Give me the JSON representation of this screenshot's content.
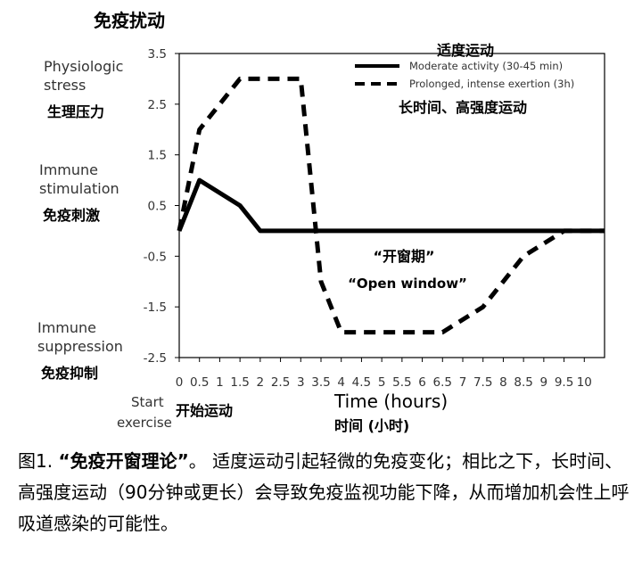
{
  "chart_data": {
    "type": "line",
    "title": "免疫扰动",
    "xlabel": "Time (hours)",
    "xlabel_cn": "时间 (小时)",
    "x_start_label": "Start exercise",
    "x_start_label_cn": "开始运动",
    "x_ticks": [
      "0",
      "0.5",
      "1",
      "1.5",
      "2",
      "2.5",
      "3",
      "3.5",
      "4",
      "4.5",
      "5",
      "5.5",
      "6",
      "6.5",
      "7",
      "7.5",
      "8",
      "8.5",
      "9",
      "9.5",
      "10"
    ],
    "y_ticks": [
      "3.5",
      "2.5",
      "1.5",
      "0.5",
      "-0.5",
      "-1.5",
      "-2.5"
    ],
    "ylim": [
      -2.5,
      3.5
    ],
    "xlim": [
      0,
      10.5
    ],
    "y_annotations": [
      {
        "en": "Physiologic stress",
        "cn": "生理压力",
        "y": 3.0
      },
      {
        "en": "Immune stimulation",
        "cn": "免疫刺激",
        "y": 0.8
      },
      {
        "en": "Immune suppression",
        "cn": "免疫抑制",
        "y": -2.0
      }
    ],
    "legend_position": "top-right",
    "series": [
      {
        "name": "Moderate activity (30-45 min)",
        "name_cn": "适度运动",
        "style": "solid",
        "x": [
          0,
          0.5,
          1.5,
          2,
          10.5
        ],
        "y": [
          0,
          1,
          0.5,
          0,
          0
        ]
      },
      {
        "name": "Prolonged, intense exertion (3h)",
        "name_cn": "长时间、高强度运动",
        "style": "dashed",
        "x": [
          0,
          0.5,
          1.5,
          3,
          3.5,
          4,
          6.5,
          7.5,
          8.5,
          9.5,
          10.5
        ],
        "y": [
          0,
          2,
          3,
          3,
          -1,
          -2,
          -2,
          -1.5,
          -0.5,
          0,
          0
        ]
      }
    ],
    "annotations": [
      {
        "cn": "“开窗期”",
        "en": "“Open window”"
      }
    ],
    "colors": {
      "line": "#000000",
      "axis": "#000000",
      "text": "#333333"
    }
  },
  "caption": {
    "figure_label": "图1.",
    "title": "“免疫开窗理论”",
    "period": "。",
    "text": "适度运动引起轻微的免疫变化；相比之下，长时间、高强度运动（90分钟或更长）会导致免疫监视功能下降，从而增加机会性上呼吸道感染的可能性。"
  }
}
